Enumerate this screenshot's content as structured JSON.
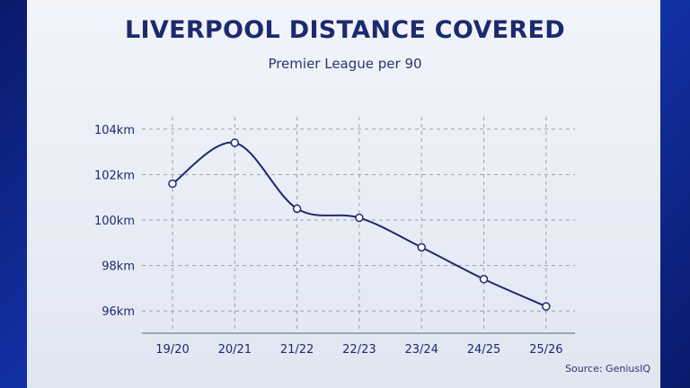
{
  "chart_data": {
    "type": "line",
    "title": "LIVERPOOL DISTANCE COVERED",
    "subtitle": "Premier League per 90",
    "source": "Source: GeniusIQ",
    "categories": [
      "19/20",
      "20/21",
      "21/22",
      "22/23",
      "23/24",
      "24/25",
      "25/26"
    ],
    "values": [
      101.6,
      103.4,
      100.5,
      100.1,
      98.8,
      97.4,
      96.2
    ],
    "yticks": [
      96,
      98,
      100,
      102,
      104
    ],
    "ytick_suffix": "km",
    "ylim": [
      95,
      105
    ],
    "grid": true,
    "line_color": "#1c2a6e"
  }
}
